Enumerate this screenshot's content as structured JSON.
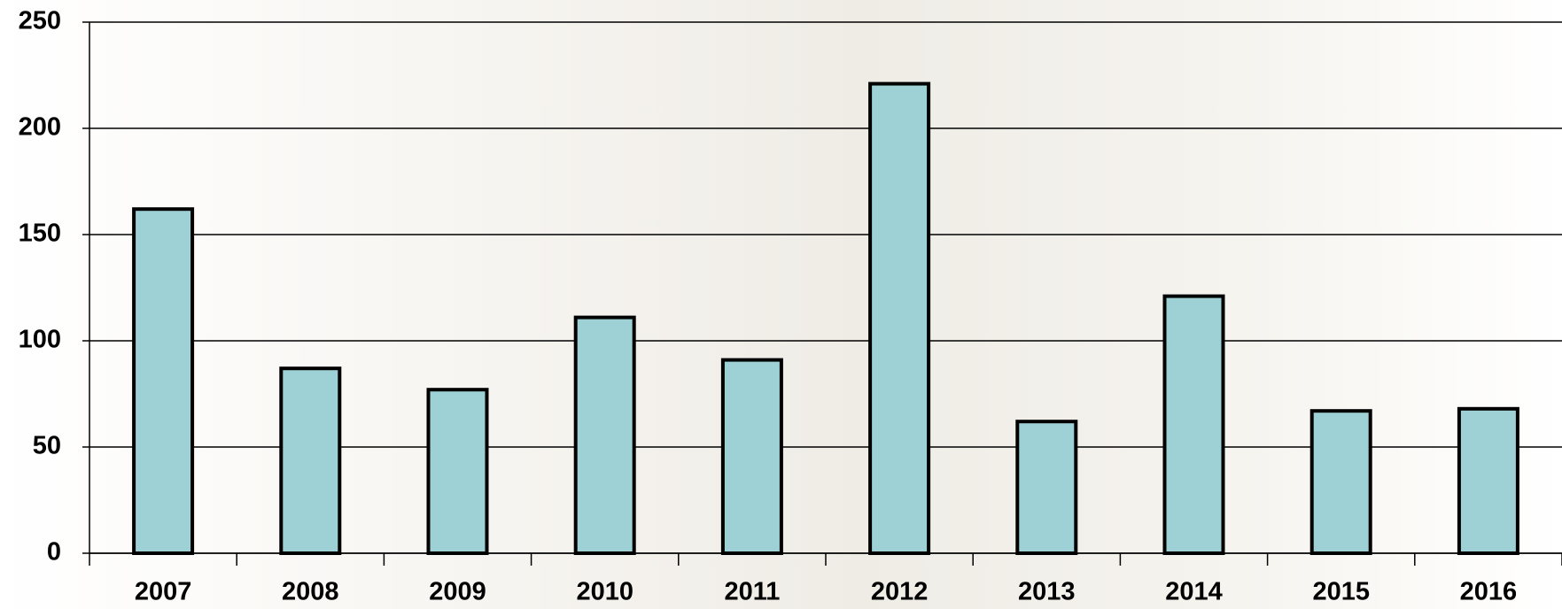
{
  "chart_data": {
    "type": "bar",
    "categories": [
      "2007",
      "2008",
      "2009",
      "2010",
      "2011",
      "2012",
      "2013",
      "2014",
      "2015",
      "2016"
    ],
    "values": [
      162,
      87,
      77,
      111,
      91,
      221,
      62,
      121,
      67,
      68
    ],
    "color": "#9dd1d5",
    "ylim": [
      0,
      250
    ],
    "yticks": [
      0,
      50,
      100,
      150,
      200,
      250
    ],
    "grid": true
  }
}
